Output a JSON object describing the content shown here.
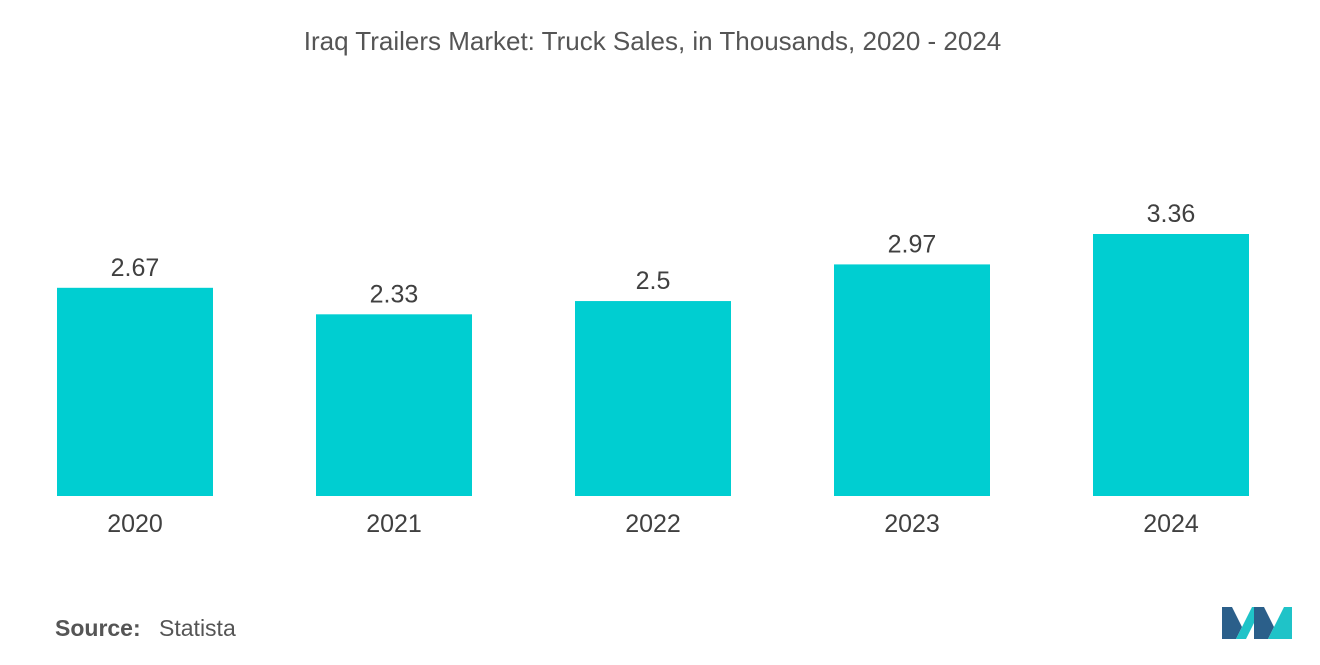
{
  "chart_data": {
    "type": "bar",
    "title": "Iraq Trailers Market: Truck Sales, in Thousands, 2020 - 2024",
    "categories": [
      "2020",
      "2021",
      "2022",
      "2023",
      "2024"
    ],
    "values": [
      2.67,
      2.33,
      2.5,
      2.97,
      3.36
    ],
    "value_labels": [
      "2.67",
      "2.33",
      "2.5",
      "2.97",
      "3.36"
    ],
    "xlabel": "",
    "ylabel": "",
    "ylim": [
      0,
      3.36
    ],
    "grid": false,
    "legend": "none",
    "bar_color": "#00CED1"
  },
  "source": {
    "label": "Source:",
    "value": "Statista"
  },
  "colors": {
    "bar": "#00CED1",
    "logo_dark": "#2B5F8A",
    "logo_light": "#1FC3C8"
  }
}
